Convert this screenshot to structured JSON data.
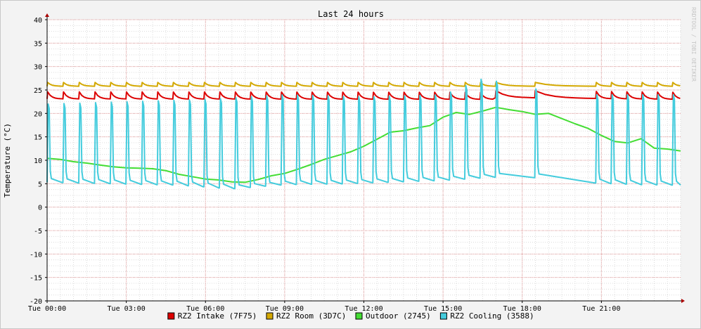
{
  "chart_data": {
    "type": "line",
    "title": "Last 24 hours",
    "ylabel": "Temperature (°C)",
    "watermark": "RRDTOOL / TOBI OETIKER",
    "ylim": [
      -20,
      40
    ],
    "yticks": [
      40,
      35,
      30,
      25,
      20,
      15,
      10,
      5,
      0,
      -5,
      -10,
      -15,
      -20
    ],
    "xlim_hours": [
      0,
      24
    ],
    "xticks": [
      {
        "hour": 0,
        "label": "Tue 00:00"
      },
      {
        "hour": 3,
        "label": "Tue 03:00"
      },
      {
        "hour": 6,
        "label": "Tue 06:00"
      },
      {
        "hour": 9,
        "label": "Tue 09:00"
      },
      {
        "hour": 12,
        "label": "Tue 12:00"
      },
      {
        "hour": 15,
        "label": "Tue 15:00"
      },
      {
        "hour": 18,
        "label": "Tue 18:00"
      },
      {
        "hour": 21,
        "label": "Tue 21:00"
      }
    ],
    "legend_position": "bottom",
    "series": [
      {
        "name": "RZ2 Intake (7F75)",
        "color": "#dd0000",
        "pattern": "sawtooth",
        "base": [
          [
            0,
            23.1
          ],
          [
            16.9,
            23.0
          ],
          [
            17,
            23.4
          ],
          [
            24,
            23.0
          ]
        ],
        "amp": 1.5,
        "cycle_hours": [
          [
            0,
            0.6
          ],
          [
            9,
            0.58
          ],
          [
            16.7,
            0.58
          ],
          [
            17.2,
            2.2
          ],
          [
            19.5,
            2.4
          ],
          [
            20.6,
            0.58
          ],
          [
            24,
            0.58
          ]
        ]
      },
      {
        "name": "RZ2 Room (3D7C)",
        "color": "#d4a800",
        "pattern": "sawtooth",
        "base": [
          [
            0,
            25.8
          ],
          [
            24,
            25.8
          ]
        ],
        "amp": 0.8,
        "cycle_hours": [
          [
            0,
            0.6
          ],
          [
            9,
            0.58
          ],
          [
            16.7,
            0.58
          ],
          [
            17.2,
            2.2
          ],
          [
            19.5,
            2.4
          ],
          [
            20.6,
            0.58
          ],
          [
            24,
            0.58
          ]
        ]
      },
      {
        "name": "Outdoor (2745)",
        "color": "#44dd33",
        "pattern": "line",
        "points": [
          [
            0,
            10.4
          ],
          [
            0.5,
            10.2
          ],
          [
            1,
            9.7
          ],
          [
            1.5,
            9.4
          ],
          [
            2,
            9.0
          ],
          [
            2.5,
            8.6
          ],
          [
            3,
            8.4
          ],
          [
            3.5,
            8.3
          ],
          [
            4,
            8.2
          ],
          [
            4.5,
            7.8
          ],
          [
            5,
            7.0
          ],
          [
            5.5,
            6.5
          ],
          [
            6,
            6.0
          ],
          [
            6.5,
            5.8
          ],
          [
            7,
            5.4
          ],
          [
            7.5,
            5.3
          ],
          [
            8,
            5.9
          ],
          [
            8.5,
            6.7
          ],
          [
            9,
            7.2
          ],
          [
            9.5,
            8.1
          ],
          [
            10,
            9.1
          ],
          [
            10.5,
            10.2
          ],
          [
            11,
            11.0
          ],
          [
            11.5,
            11.8
          ],
          [
            12,
            13.0
          ],
          [
            12.5,
            14.5
          ],
          [
            13,
            16.0
          ],
          [
            13.5,
            16.3
          ],
          [
            14,
            16.9
          ],
          [
            14.5,
            17.4
          ],
          [
            15,
            19.2
          ],
          [
            15.5,
            20.2
          ],
          [
            16,
            19.8
          ],
          [
            16.5,
            20.5
          ],
          [
            17,
            21.3
          ],
          [
            17.5,
            20.8
          ],
          [
            18,
            20.4
          ],
          [
            18.5,
            19.8
          ],
          [
            19,
            20.0
          ],
          [
            19.5,
            18.9
          ],
          [
            20,
            17.8
          ],
          [
            20.5,
            16.8
          ],
          [
            21,
            15.3
          ],
          [
            21.5,
            14.0
          ],
          [
            22,
            13.7
          ],
          [
            22.5,
            14.6
          ],
          [
            23,
            12.6
          ],
          [
            23.5,
            12.4
          ],
          [
            24,
            12.0
          ]
        ]
      },
      {
        "name": "RZ2 Cooling (3588)",
        "color": "#44ccdd",
        "pattern": "spike",
        "base": [
          [
            0,
            5.3
          ],
          [
            5,
            4.7
          ],
          [
            7,
            3.9
          ],
          [
            9,
            4.8
          ],
          [
            11.5,
            5.0
          ],
          [
            12.3,
            5.2
          ],
          [
            15,
            5.7
          ],
          [
            17,
            6.4
          ],
          [
            19.5,
            6.2
          ],
          [
            20.5,
            5.2
          ],
          [
            22.5,
            4.8
          ],
          [
            24,
            4.7
          ]
        ],
        "peak": [
          [
            0,
            22.0
          ],
          [
            6,
            23.0
          ],
          [
            9,
            24.0
          ],
          [
            12,
            23.5
          ],
          [
            15,
            24.0
          ],
          [
            16.7,
            28.0
          ],
          [
            17.2,
            26.0
          ],
          [
            20.5,
            24.0
          ],
          [
            24,
            24.0
          ]
        ],
        "cycle_hours": [
          [
            0,
            0.6
          ],
          [
            9,
            0.58
          ],
          [
            16.7,
            0.58
          ],
          [
            17.2,
            2.2
          ],
          [
            19.5,
            2.4
          ],
          [
            20.6,
            0.58
          ],
          [
            24,
            0.58
          ]
        ]
      }
    ]
  }
}
